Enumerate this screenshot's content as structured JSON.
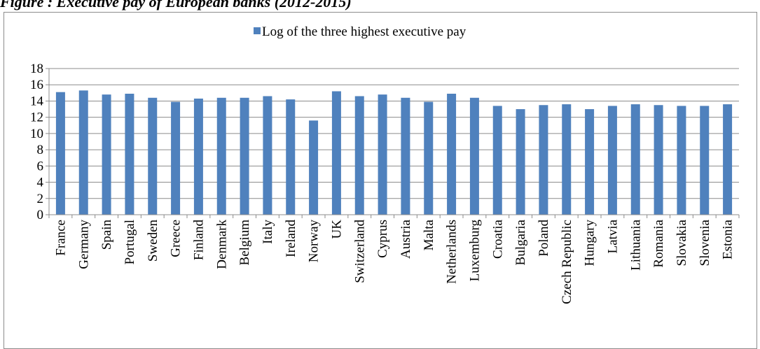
{
  "figure": {
    "title": "Figure : Executive pay of European banks (2012-2015)"
  },
  "chart_data": {
    "type": "bar",
    "categories": [
      "France",
      "Germany",
      "Spain",
      "Portugal",
      "Sweden",
      "Greece",
      "Finland",
      "Denmark",
      "Belgium",
      "Italy",
      "Ireland",
      "Norway",
      "UK",
      "Switzerland",
      "Cyprus",
      "Austria",
      "Malta",
      "Netherlands",
      "Luxemburg",
      "Croatia",
      "Bulgaria",
      "Poland",
      "Czech Republic",
      "Hungary",
      "Latvia",
      "Lithuania",
      "Romania",
      "Slovakia",
      "Slovenia",
      "Estonia"
    ],
    "series": [
      {
        "name": "Log of the three highest executive pay",
        "color": "#4f81bd",
        "values": [
          15.1,
          15.3,
          14.8,
          14.9,
          14.4,
          13.9,
          14.3,
          14.4,
          14.4,
          14.6,
          14.2,
          11.6,
          15.2,
          14.6,
          14.8,
          14.4,
          13.9,
          14.9,
          14.4,
          13.4,
          13.0,
          13.5,
          13.6,
          13.0,
          13.4,
          13.6,
          13.5,
          13.4,
          13.4,
          13.6
        ]
      }
    ],
    "ylim": [
      0,
      18
    ],
    "yticks": [
      "0",
      "2",
      "4",
      "6",
      "8",
      "10",
      "12",
      "14",
      "16",
      "18"
    ],
    "grid": true,
    "legend_position": "top-center"
  }
}
